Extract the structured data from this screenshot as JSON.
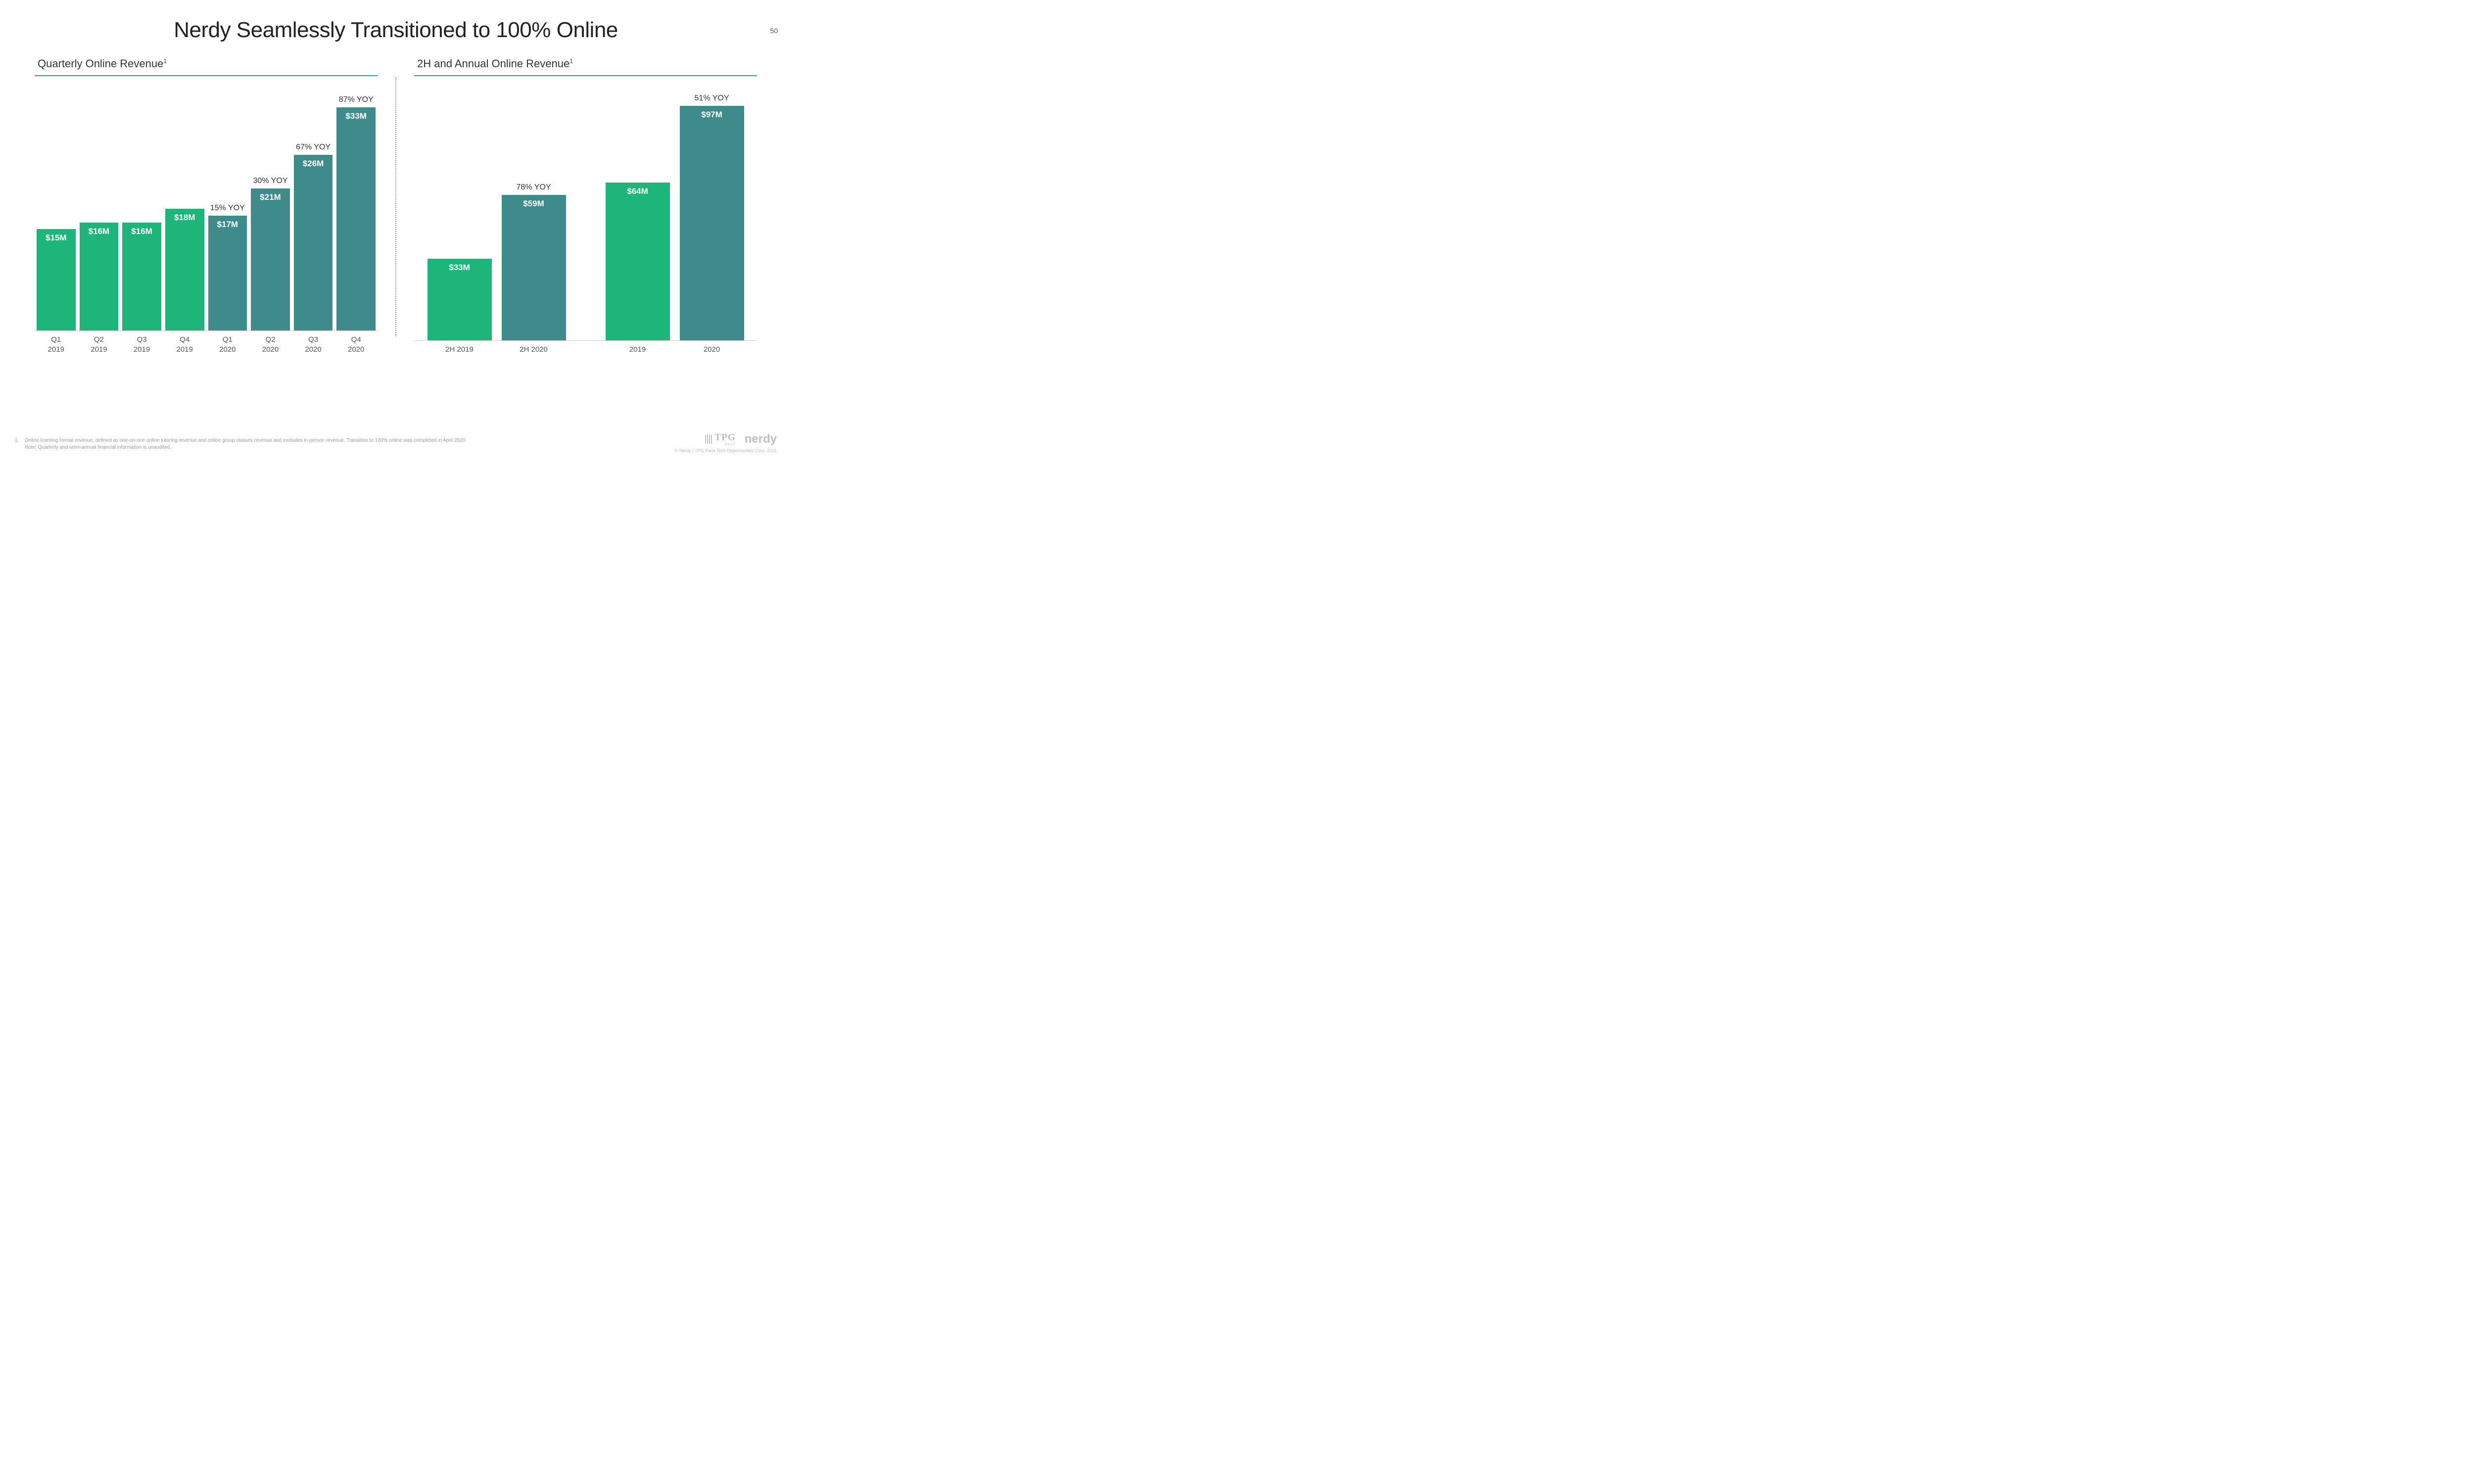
{
  "page_number": "50",
  "title": "Nerdy Seamlessly Transitioned to 100% Online",
  "left_chart": {
    "subtitle": "Quarterly Online Revenue",
    "superscript": "1",
    "type": "bar",
    "ymax": 35,
    "bars": [
      {
        "label_l1": "Q1",
        "label_l2": "2019",
        "value": 15,
        "text": "$15M",
        "color": "#1db57a",
        "yoy": ""
      },
      {
        "label_l1": "Q2",
        "label_l2": "2019",
        "value": 16,
        "text": "$16M",
        "color": "#1db57a",
        "yoy": ""
      },
      {
        "label_l1": "Q3",
        "label_l2": "2019",
        "value": 16,
        "text": "$16M",
        "color": "#1db57a",
        "yoy": ""
      },
      {
        "label_l1": "Q4",
        "label_l2": "2019",
        "value": 18,
        "text": "$18M",
        "color": "#1db57a",
        "yoy": ""
      },
      {
        "label_l1": "Q1",
        "label_l2": "2020",
        "value": 17,
        "text": "$17M",
        "color": "#3f8b8b",
        "yoy": "15% YOY"
      },
      {
        "label_l1": "Q2",
        "label_l2": "2020",
        "value": 21,
        "text": "$21M",
        "color": "#3f8b8b",
        "yoy": "30% YOY"
      },
      {
        "label_l1": "Q3",
        "label_l2": "2020",
        "value": 26,
        "text": "$26M",
        "color": "#3f8b8b",
        "yoy": "67% YOY"
      },
      {
        "label_l1": "Q4",
        "label_l2": "2020",
        "value": 33,
        "text": "$33M",
        "color": "#3f8b8b",
        "yoy": "87% YOY"
      }
    ]
  },
  "right_chart": {
    "subtitle": "2H and Annual Online Revenue",
    "superscript": "1",
    "type": "bar",
    "ymax": 100,
    "groups": [
      [
        {
          "label_l1": "2H 2019",
          "label_l2": "",
          "value": 33,
          "text": "$33M",
          "color": "#1db57a",
          "yoy": ""
        },
        {
          "label_l1": "2H 2020",
          "label_l2": "",
          "value": 59,
          "text": "$59M",
          "color": "#3f8b8b",
          "yoy": "78% YOY"
        }
      ],
      [
        {
          "label_l1": "2019",
          "label_l2": "",
          "value": 64,
          "text": "$64M",
          "color": "#1db57a",
          "yoy": ""
        },
        {
          "label_l1": "2020",
          "label_l2": "",
          "value": 97,
          "text": "$97M",
          "color": "#3f8b8b",
          "yoy": "51% YOY"
        }
      ]
    ]
  },
  "footnote_num": "1.",
  "footnote1": "Online learning format revenue, defined as one-on-one online tutoring revenue and online group classes revenue and excludes in-person revenue. Transition to 100% online was completed in April 2020",
  "footnote2": "Note: Quarterly and semi-annual financial information is unaudited.",
  "tpg_label": "TPG",
  "tpg_sub": "PACE",
  "nerdy_label": "nerdy",
  "copyright": "© Nerdy / TPG Pace Tech Opportunities Corp. 2021",
  "colors": {
    "accent_underline": "#1ea976",
    "bar_2019": "#1db57a",
    "bar_2020": "#3f8b8b",
    "bar_value_text": "#ffffff",
    "background": "#ffffff"
  }
}
